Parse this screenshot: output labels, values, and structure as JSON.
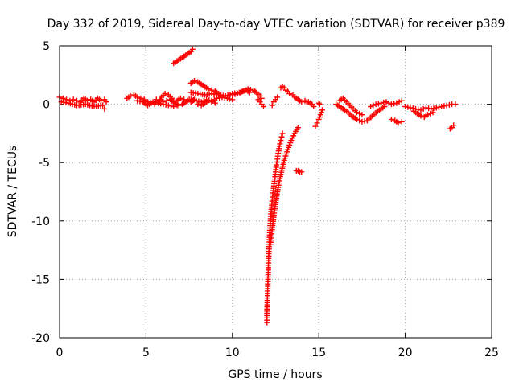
{
  "chart_data": {
    "type": "scatter",
    "title": "Day 332 of 2019, Sidereal Day-to-day VTEC variation (SDTVAR) for receiver p389",
    "xlabel": "GPS time / hours",
    "ylabel": "SDTVAR / TECUs",
    "xlim": [
      0,
      25
    ],
    "ylim": [
      -20,
      5
    ],
    "xticks": [
      0,
      5,
      10,
      15,
      20,
      25
    ],
    "yticks": [
      5,
      0,
      -5,
      -10,
      -15,
      -20
    ],
    "xtick_labels": [
      "0",
      "5",
      "10",
      "15",
      "20",
      "25"
    ],
    "ytick_labels": [
      "5",
      "0",
      "-5",
      "-10",
      "-15",
      "-20"
    ],
    "grid": true,
    "marker": "plus",
    "marker_color": "#ff0000",
    "series": [
      {
        "name": "seg-0.0-2.7",
        "x": [
          0.0,
          0.2,
          0.4,
          0.6,
          0.8,
          1.0,
          1.2,
          1.4,
          1.6,
          1.8,
          2.0,
          2.2,
          2.4,
          2.6,
          2.7
        ],
        "y": [
          0.6,
          0.5,
          0.4,
          0.3,
          0.4,
          0.3,
          0.2,
          0.5,
          0.3,
          0.4,
          0.2,
          0.5,
          0.3,
          0.4,
          0.2
        ]
      },
      {
        "name": "seg-0.0-2.7-low",
        "x": [
          0.1,
          0.5,
          1.0,
          1.5,
          2.0,
          2.5,
          2.6
        ],
        "y": [
          0.2,
          0.1,
          -0.1,
          0.0,
          -0.2,
          -0.1,
          -0.4
        ]
      },
      {
        "name": "seg-3.9-5.5",
        "x": [
          3.9,
          4.1,
          4.3,
          4.5,
          4.7,
          4.9,
          5.1,
          5.3,
          5.5
        ],
        "y": [
          0.5,
          0.7,
          0.8,
          0.6,
          0.5,
          0.4,
          0.2,
          0.1,
          0.0
        ]
      },
      {
        "name": "seg-4.5-6.8",
        "x": [
          4.5,
          4.8,
          5.1,
          5.4,
          5.7,
          6.0,
          6.3,
          6.6,
          6.8
        ],
        "y": [
          0.3,
          0.2,
          -0.1,
          0.2,
          0.1,
          0.0,
          -0.1,
          -0.2,
          -0.1
        ]
      },
      {
        "name": "seg-5.6-7.8",
        "x": [
          5.6,
          5.8,
          6.0,
          6.2,
          6.4,
          6.6,
          6.8,
          7.0,
          7.2,
          7.4,
          7.6,
          7.8
        ],
        "y": [
          0.4,
          0.3,
          0.2,
          0.3,
          0.4,
          0.2,
          0.3,
          0.5,
          0.4,
          0.3,
          0.2,
          0.4
        ]
      },
      {
        "name": "seg-5.8-7.6-loop",
        "x": [
          5.8,
          5.9,
          6.1,
          6.3,
          6.5,
          6.7,
          6.9,
          7.1,
          7.3,
          7.5,
          7.6
        ],
        "y": [
          0.2,
          0.6,
          0.9,
          0.8,
          0.5,
          0.1,
          -0.1,
          0.0,
          0.2,
          0.4,
          0.3
        ]
      },
      {
        "name": "seg-6.6-7.7-high",
        "x": [
          6.6,
          6.8,
          7.0,
          7.2,
          7.4,
          7.6,
          7.7
        ],
        "y": [
          3.5,
          3.7,
          3.9,
          4.1,
          4.3,
          4.5,
          4.7
        ]
      },
      {
        "name": "seg-7.6-9.2",
        "x": [
          7.6,
          7.8,
          8.0,
          8.2,
          8.4,
          8.6,
          8.8,
          9.0,
          9.2
        ],
        "y": [
          1.8,
          2.0,
          1.9,
          1.7,
          1.5,
          1.3,
          1.2,
          1.1,
          0.9
        ]
      },
      {
        "name": "seg-7.6-11.0",
        "x": [
          7.6,
          8.0,
          8.4,
          8.8,
          9.2,
          9.6,
          10.0,
          10.4,
          10.8,
          11.0
        ],
        "y": [
          1.0,
          0.9,
          0.8,
          0.9,
          0.8,
          0.7,
          0.9,
          1.0,
          1.2,
          1.0
        ]
      },
      {
        "name": "seg-7.6-10.0-low",
        "x": [
          7.6,
          7.9,
          8.2,
          8.5,
          8.8,
          9.1,
          9.4,
          9.7,
          10.0
        ],
        "y": [
          0.4,
          0.3,
          0.2,
          0.4,
          0.3,
          0.5,
          0.6,
          0.5,
          0.4
        ]
      },
      {
        "name": "seg-8.0-9.0-dip",
        "x": [
          8.0,
          8.2,
          8.4,
          8.6,
          8.8,
          9.0
        ],
        "y": [
          0.0,
          -0.1,
          0.1,
          0.3,
          0.2,
          0.1
        ]
      },
      {
        "name": "seg-10.0-11.7",
        "x": [
          10.0,
          10.3,
          10.6,
          10.9,
          11.2,
          11.4,
          11.6,
          11.7
        ],
        "y": [
          0.8,
          0.9,
          1.1,
          1.3,
          1.2,
          1.0,
          0.7,
          0.5
        ]
      },
      {
        "name": "seg-11.5-11.8",
        "x": [
          11.5,
          11.6,
          11.7,
          11.8
        ],
        "y": [
          0.4,
          0.2,
          0.0,
          -0.2
        ]
      },
      {
        "name": "seg-12.3-12.6",
        "x": [
          12.3,
          12.4,
          12.5,
          12.6
        ],
        "y": [
          -0.1,
          0.2,
          0.4,
          0.6
        ]
      },
      {
        "name": "seg-12.8-13.3",
        "x": [
          12.8,
          12.9,
          13.0,
          13.1,
          13.2,
          13.3
        ],
        "y": [
          1.4,
          1.5,
          1.4,
          1.2,
          1.1,
          0.9
        ]
      },
      {
        "name": "seg-13.5-14.0",
        "x": [
          13.5,
          13.6,
          13.7,
          13.8,
          13.9,
          14.0
        ],
        "y": [
          0.8,
          0.6,
          0.5,
          0.4,
          0.3,
          0.2
        ]
      },
      {
        "name": "seg-14.2-14.7",
        "x": [
          14.2,
          14.3,
          14.4,
          14.5,
          14.6,
          14.7
        ],
        "y": [
          0.3,
          0.2,
          0.2,
          0.1,
          0.0,
          -0.2
        ]
      },
      {
        "name": "seg-14.8-15.2",
        "x": [
          14.8,
          14.9,
          15.0,
          15.1,
          15.2
        ],
        "y": [
          -1.9,
          -1.6,
          -1.3,
          -0.9,
          -0.5
        ]
      },
      {
        "name": "seg-15.0",
        "x": [
          15.0,
          15.05
        ],
        "y": [
          0.1,
          0.0
        ]
      },
      {
        "name": "seg-12.0-12.9-spike",
        "x": [
          12.0,
          12.0,
          12.02,
          12.04,
          12.06,
          12.08,
          12.1,
          12.13,
          12.16,
          12.2,
          12.25,
          12.3,
          12.35,
          12.4,
          12.45,
          12.5,
          12.55,
          12.6,
          12.65,
          12.7,
          12.75,
          12.8,
          12.85,
          12.9
        ],
        "y": [
          -18.7,
          -17.9,
          -17.0,
          -16.0,
          -15.0,
          -14.0,
          -13.0,
          -12.0,
          -11.0,
          -10.0,
          -9.0,
          -8.3,
          -7.6,
          -7.0,
          -6.4,
          -5.8,
          -5.2,
          -4.7,
          -4.2,
          -3.8,
          -3.4,
          -3.1,
          -2.8,
          -2.5
        ]
      },
      {
        "name": "seg-12.2-13.8-tail",
        "x": [
          12.2,
          12.4,
          12.6,
          12.8,
          13.0,
          13.2,
          13.4,
          13.6,
          13.8
        ],
        "y": [
          -12.0,
          -9.5,
          -7.5,
          -6.0,
          -4.8,
          -3.9,
          -3.1,
          -2.5,
          -2.0
        ]
      },
      {
        "name": "seg-13.7-14.0",
        "x": [
          13.7,
          13.8,
          13.9,
          14.0
        ],
        "y": [
          -5.7,
          -5.7,
          -5.8,
          -5.8
        ]
      },
      {
        "name": "seg-16.0-18.8",
        "x": [
          16.0,
          16.3,
          16.6,
          16.9,
          17.2,
          17.5,
          17.8,
          18.1,
          18.4,
          18.8
        ],
        "y": [
          0.0,
          -0.3,
          -0.6,
          -1.0,
          -1.3,
          -1.5,
          -1.4,
          -1.0,
          -0.6,
          -0.2
        ]
      },
      {
        "name": "seg-16.2-17.5-hump",
        "x": [
          16.2,
          16.4,
          16.6,
          16.8,
          17.0,
          17.2,
          17.5
        ],
        "y": [
          0.3,
          0.5,
          0.2,
          -0.1,
          -0.4,
          -0.7,
          -0.9
        ]
      },
      {
        "name": "seg-18.0-19.8",
        "x": [
          18.0,
          18.3,
          18.6,
          18.9,
          19.2,
          19.5,
          19.8
        ],
        "y": [
          -0.2,
          0.0,
          0.1,
          0.2,
          0.0,
          0.1,
          0.3
        ]
      },
      {
        "name": "seg-19.2-19.8-low",
        "x": [
          19.2,
          19.4,
          19.6,
          19.8
        ],
        "y": [
          -1.3,
          -1.4,
          -1.6,
          -1.5
        ]
      },
      {
        "name": "seg-20.0-22.9",
        "x": [
          20.0,
          20.3,
          20.6,
          20.9,
          21.2,
          21.5,
          21.8,
          22.1,
          22.4,
          22.7,
          22.9
        ],
        "y": [
          -0.2,
          -0.3,
          -0.4,
          -0.5,
          -0.3,
          -0.4,
          -0.3,
          -0.2,
          -0.1,
          0.0,
          0.0
        ]
      },
      {
        "name": "seg-20.5-21.6-loop",
        "x": [
          20.5,
          20.7,
          20.9,
          21.1,
          21.3,
          21.6
        ],
        "y": [
          -0.6,
          -0.8,
          -1.0,
          -1.1,
          -0.9,
          -0.7
        ]
      },
      {
        "name": "seg-22.6-22.8",
        "x": [
          22.6,
          22.7,
          22.8
        ],
        "y": [
          -2.1,
          -2.0,
          -1.8
        ]
      }
    ]
  }
}
